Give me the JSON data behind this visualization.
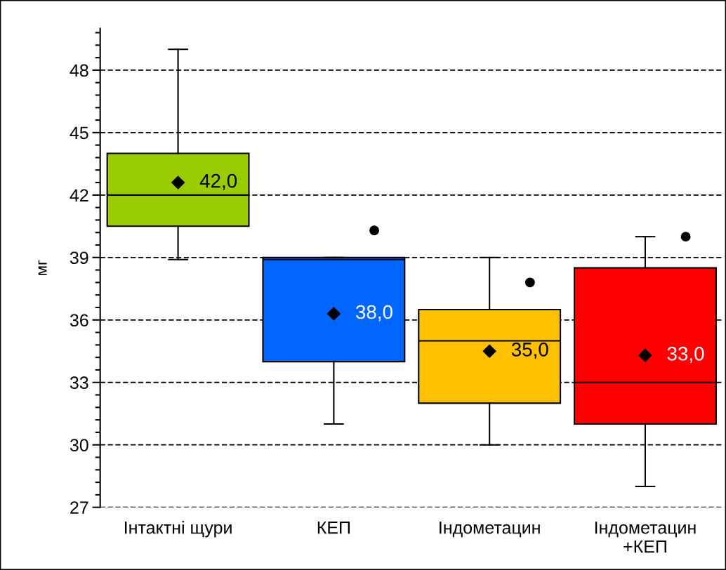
{
  "chart_data": {
    "type": "box",
    "ylabel": "мг",
    "categories": [
      "Інтактні щури",
      "КЕП",
      "Індометацин",
      "Індометацин\n+КЕП"
    ],
    "colors": [
      "#99cc00",
      "#0066ff",
      "#ffc000",
      "#ff0000"
    ],
    "boxes": [
      {
        "low": 38.9,
        "q1": 40.5,
        "median": 42.0,
        "q3": 44.0,
        "high": 49.0,
        "mean": 42.6
      },
      {
        "low": 31.0,
        "q1": 34.0,
        "median": 38.9,
        "q3": 39.0,
        "high": 39.0,
        "mean": 36.3,
        "outliers": [
          40.3
        ]
      },
      {
        "low": 30.0,
        "q1": 32.0,
        "median": 35.0,
        "q3": 36.5,
        "high": 39.0,
        "mean": 34.5,
        "outliers": [
          37.8
        ]
      },
      {
        "low": 28.0,
        "q1": 31.0,
        "median": 33.0,
        "q3": 38.5,
        "high": 40.0,
        "mean": 34.3,
        "outliers": [
          40.0
        ]
      }
    ],
    "annotations": [
      "42,0",
      "38,0",
      "35,0",
      "33,0"
    ],
    "ylim": [
      27,
      50
    ],
    "yticks": [
      27,
      30,
      33,
      36,
      39,
      42,
      45,
      48
    ],
    "grid": "y",
    "legend": false
  }
}
